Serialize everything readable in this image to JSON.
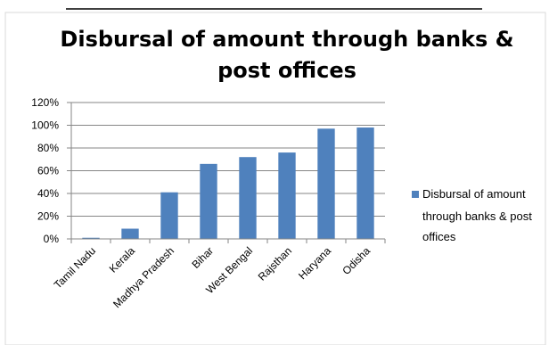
{
  "chart_data": {
    "type": "bar",
    "title": "Disbursal of amount through banks & post offices",
    "title_lines": [
      "Disbursal of amount through banks &",
      "post offices"
    ],
    "categories": [
      "Tamil Nadu",
      "Kerala",
      "Madhya Pradesh",
      "Bihar",
      "West Bengal",
      "Rajsthan",
      "Haryana",
      "Odisha"
    ],
    "series": [
      {
        "name": "Disbursal of amount through banks & post offices",
        "values": [
          0.01,
          0.09,
          0.41,
          0.66,
          0.72,
          0.76,
          0.97,
          0.98
        ]
      }
    ],
    "legend_lines": [
      "Disbursal of amount",
      "through banks & post",
      "offices"
    ],
    "y_ticks": [
      "0%",
      "20%",
      "40%",
      "60%",
      "80%",
      "100%",
      "120%"
    ],
    "ylim": [
      0,
      1.2
    ],
    "xlabel": "",
    "ylabel": "",
    "grid": true,
    "legend_position": "right",
    "colors": {
      "bar": "#4f81bd",
      "grid": "#868686",
      "axis": "#868686",
      "frame": "#d9d9d9"
    }
  }
}
